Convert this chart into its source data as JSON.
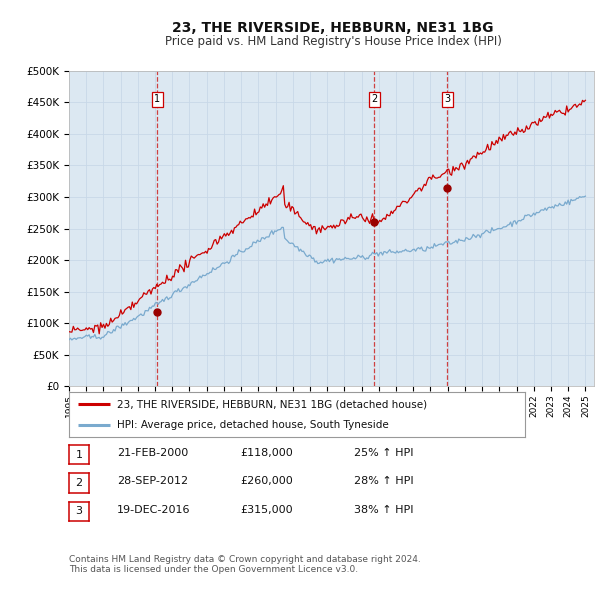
{
  "title": "23, THE RIVERSIDE, HEBBURN, NE31 1BG",
  "subtitle": "Price paid vs. HM Land Registry's House Price Index (HPI)",
  "ylim": [
    0,
    500000
  ],
  "yticks": [
    0,
    50000,
    100000,
    150000,
    200000,
    250000,
    300000,
    350000,
    400000,
    450000,
    500000
  ],
  "ytick_labels": [
    "£0",
    "£50K",
    "£100K",
    "£150K",
    "£200K",
    "£250K",
    "£300K",
    "£350K",
    "£400K",
    "£450K",
    "£500K"
  ],
  "xlim_start": 1995.0,
  "xlim_end": 2025.5,
  "grid_color": "#c8d8e8",
  "plot_bg_color": "#dce8f2",
  "red_line_color": "#cc0000",
  "blue_line_color": "#7aaace",
  "sale_marker_color": "#990000",
  "vline_color": "#cc2222",
  "sale_dates": [
    2000.13,
    2012.74,
    2016.97
  ],
  "sale_prices": [
    118000,
    260000,
    315000
  ],
  "sale_labels": [
    "1",
    "2",
    "3"
  ],
  "legend_red_label": "23, THE RIVERSIDE, HEBBURN, NE31 1BG (detached house)",
  "legend_blue_label": "HPI: Average price, detached house, South Tyneside",
  "table_rows": [
    [
      "1",
      "21-FEB-2000",
      "£118,000",
      "25% ↑ HPI"
    ],
    [
      "2",
      "28-SEP-2012",
      "£260,000",
      "28% ↑ HPI"
    ],
    [
      "3",
      "19-DEC-2016",
      "£315,000",
      "38% ↑ HPI"
    ]
  ],
  "footer_text": "Contains HM Land Registry data © Crown copyright and database right 2024.\nThis data is licensed under the Open Government Licence v3.0.",
  "title_fontsize": 10,
  "subtitle_fontsize": 8.5,
  "tick_fontsize": 7.5,
  "legend_fontsize": 7.5,
  "table_fontsize": 8,
  "footer_fontsize": 6.5
}
